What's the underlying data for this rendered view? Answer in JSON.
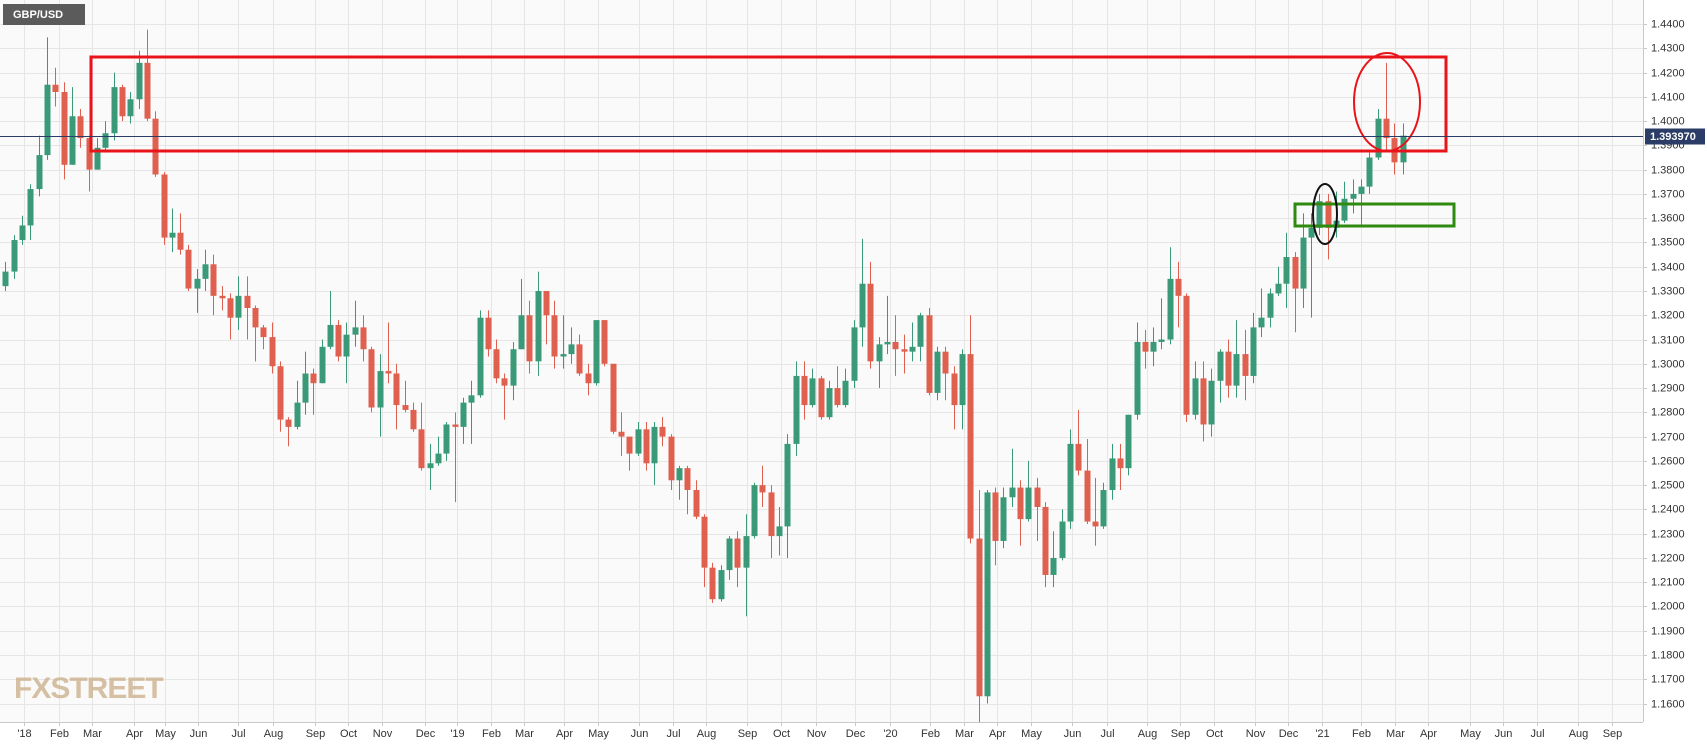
{
  "chart_data": {
    "type": "candlestick",
    "title": "GBP/USD",
    "watermark": "FXSTREET",
    "up_color": "#3a9a78",
    "down_color": "#e0604f",
    "grid": true,
    "open": [
      1.332,
      1.338,
      1.351,
      1.357,
      1.372,
      1.386,
      1.415,
      1.412,
      1.382,
      1.402,
      1.393,
      1.38,
      1.389,
      1.395,
      1.414,
      1.402,
      1.409,
      1.424,
      1.401,
      1.378,
      1.352,
      1.354,
      1.347,
      1.331,
      1.335,
      1.341,
      1.328,
      1.327,
      1.319,
      1.328,
      1.323,
      1.315,
      1.311,
      1.299,
      1.277,
      1.274,
      1.284,
      1.296,
      1.292,
      1.307,
      1.316,
      1.303,
      1.312,
      1.315,
      1.306,
      1.282,
      1.297,
      1.296,
      1.283,
      1.281,
      1.273,
      1.257,
      1.259,
      1.263,
      1.275,
      1.274,
      1.284,
      1.287,
      1.319,
      1.306,
      1.294,
      1.291,
      1.306,
      1.32,
      1.301,
      1.33,
      1.32,
      1.303,
      1.304,
      1.308,
      1.296,
      1.292,
      1.318,
      1.3,
      1.272,
      1.27,
      1.263,
      1.273,
      1.259,
      1.274,
      1.27,
      1.252,
      1.257,
      1.248,
      1.237,
      1.216,
      1.203,
      1.215,
      1.228,
      1.216,
      1.229,
      1.25,
      1.247,
      1.229,
      1.233,
      1.267,
      1.295,
      1.283,
      1.294,
      1.278,
      1.29,
      1.283,
      1.293,
      1.315,
      1.333,
      1.301,
      1.308,
      1.309,
      1.306,
      1.305,
      1.307,
      1.32,
      1.288,
      1.305,
      1.296,
      1.283,
      1.304,
      1.228,
      1.163,
      1.247,
      1.227,
      1.245,
      1.249,
      1.236,
      1.249,
      1.241,
      1.213,
      1.22,
      1.235,
      1.267,
      1.256,
      1.235,
      1.233,
      1.248,
      1.261,
      1.257,
      1.279,
      1.309,
      1.305,
      1.309,
      1.31,
      1.335,
      1.328,
      1.279,
      1.294,
      1.275,
      1.293,
      1.305,
      1.291,
      1.304,
      1.295,
      1.315,
      1.319,
      1.329,
      1.333,
      1.344,
      1.331,
      1.352,
      1.356,
      1.367,
      1.356,
      1.359,
      1.368,
      1.37,
      1.373,
      1.385,
      1.401,
      1.393,
      1.383
    ],
    "high": [
      1.342,
      1.353,
      1.361,
      1.374,
      1.394,
      1.4345,
      1.422,
      1.416,
      1.414,
      1.405,
      1.394,
      1.393,
      1.4,
      1.42,
      1.415,
      1.412,
      1.429,
      1.4377,
      1.404,
      1.379,
      1.364,
      1.362,
      1.349,
      1.339,
      1.347,
      1.345,
      1.332,
      1.329,
      1.336,
      1.336,
      1.324,
      1.316,
      1.317,
      1.301,
      1.278,
      1.293,
      1.305,
      1.298,
      1.31,
      1.33,
      1.318,
      1.317,
      1.326,
      1.32,
      1.307,
      1.304,
      1.317,
      1.3,
      1.293,
      1.284,
      1.284,
      1.267,
      1.27,
      1.276,
      1.28,
      1.286,
      1.293,
      1.322,
      1.322,
      1.31,
      1.296,
      1.309,
      1.335,
      1.326,
      1.338,
      1.33,
      1.326,
      1.32,
      1.315,
      1.312,
      1.3,
      1.318,
      1.318,
      1.3,
      1.28,
      1.27,
      1.276,
      1.276,
      1.276,
      1.278,
      1.271,
      1.258,
      1.258,
      1.252,
      1.238,
      1.218,
      1.217,
      1.229,
      1.231,
      1.238,
      1.251,
      1.258,
      1.25,
      1.241,
      1.271,
      1.301,
      1.301,
      1.298,
      1.295,
      1.293,
      1.299,
      1.298,
      1.318,
      1.3515,
      1.342,
      1.311,
      1.328,
      1.32,
      1.312,
      1.317,
      1.321,
      1.323,
      1.307,
      1.307,
      1.299,
      1.306,
      1.32,
      1.248,
      1.248,
      1.249,
      1.249,
      1.265,
      1.252,
      1.26,
      1.253,
      1.243,
      1.231,
      1.24,
      1.273,
      1.281,
      1.269,
      1.253,
      1.251,
      1.267,
      1.267,
      1.279,
      1.317,
      1.314,
      1.315,
      1.327,
      1.348,
      1.342,
      1.329,
      1.301,
      1.301,
      1.298,
      1.306,
      1.31,
      1.318,
      1.314,
      1.321,
      1.331,
      1.331,
      1.34,
      1.354,
      1.346,
      1.362,
      1.362,
      1.37,
      1.37,
      1.371,
      1.375,
      1.376,
      1.376,
      1.387,
      1.405,
      1.424,
      1.399,
      1.399
    ],
    "low": [
      1.33,
      1.335,
      1.349,
      1.351,
      1.369,
      1.384,
      1.406,
      1.376,
      1.382,
      1.389,
      1.371,
      1.38,
      1.387,
      1.392,
      1.4,
      1.399,
      1.405,
      1.4,
      1.377,
      1.349,
      1.346,
      1.345,
      1.33,
      1.321,
      1.33,
      1.32,
      1.322,
      1.31,
      1.314,
      1.31,
      1.301,
      1.306,
      1.296,
      1.272,
      1.266,
      1.273,
      1.279,
      1.279,
      1.292,
      1.306,
      1.301,
      1.292,
      1.307,
      1.301,
      1.28,
      1.27,
      1.292,
      1.273,
      1.28,
      1.272,
      1.256,
      1.248,
      1.258,
      1.26,
      1.243,
      1.267,
      1.267,
      1.286,
      1.303,
      1.292,
      1.277,
      1.285,
      1.306,
      1.296,
      1.295,
      1.308,
      1.298,
      1.298,
      1.3,
      1.295,
      1.287,
      1.291,
      1.299,
      1.271,
      1.262,
      1.256,
      1.262,
      1.256,
      1.25,
      1.266,
      1.248,
      1.244,
      1.238,
      1.236,
      1.208,
      1.2015,
      1.202,
      1.211,
      1.208,
      1.196,
      1.228,
      1.241,
      1.22,
      1.221,
      1.22,
      1.262,
      1.277,
      1.282,
      1.277,
      1.277,
      1.282,
      1.282,
      1.29,
      1.307,
      1.298,
      1.29,
      1.304,
      1.295,
      1.296,
      1.301,
      1.301,
      1.287,
      1.285,
      1.285,
      1.273,
      1.273,
      1.226,
      1.141,
      1.16,
      1.217,
      1.224,
      1.241,
      1.225,
      1.235,
      1.227,
      1.208,
      1.208,
      1.219,
      1.232,
      1.254,
      1.234,
      1.225,
      1.232,
      1.244,
      1.248,
      1.254,
      1.277,
      1.298,
      1.299,
      1.306,
      1.308,
      1.315,
      1.276,
      1.277,
      1.268,
      1.27,
      1.284,
      1.286,
      1.286,
      1.285,
      1.292,
      1.311,
      1.315,
      1.328,
      1.323,
      1.313,
      1.323,
      1.319,
      1.353,
      1.343,
      1.352,
      1.358,
      1.362,
      1.357,
      1.37,
      1.384,
      1.388,
      1.378,
      1.378
    ],
    "close": [
      1.338,
      1.351,
      1.357,
      1.372,
      1.386,
      1.415,
      1.412,
      1.382,
      1.402,
      1.393,
      1.38,
      1.389,
      1.395,
      1.414,
      1.402,
      1.409,
      1.424,
      1.401,
      1.378,
      1.352,
      1.354,
      1.347,
      1.331,
      1.335,
      1.341,
      1.328,
      1.327,
      1.319,
      1.328,
      1.323,
      1.315,
      1.311,
      1.299,
      1.277,
      1.274,
      1.284,
      1.296,
      1.292,
      1.307,
      1.316,
      1.303,
      1.312,
      1.315,
      1.306,
      1.282,
      1.297,
      1.296,
      1.283,
      1.281,
      1.273,
      1.257,
      1.259,
      1.263,
      1.275,
      1.274,
      1.284,
      1.287,
      1.319,
      1.306,
      1.294,
      1.291,
      1.306,
      1.32,
      1.301,
      1.33,
      1.32,
      1.303,
      1.304,
      1.308,
      1.296,
      1.292,
      1.318,
      1.3,
      1.272,
      1.27,
      1.263,
      1.273,
      1.259,
      1.274,
      1.27,
      1.252,
      1.257,
      1.248,
      1.237,
      1.216,
      1.203,
      1.215,
      1.228,
      1.216,
      1.229,
      1.25,
      1.247,
      1.229,
      1.233,
      1.267,
      1.295,
      1.283,
      1.294,
      1.278,
      1.29,
      1.283,
      1.293,
      1.315,
      1.333,
      1.301,
      1.308,
      1.309,
      1.306,
      1.305,
      1.307,
      1.32,
      1.288,
      1.305,
      1.296,
      1.283,
      1.304,
      1.228,
      1.163,
      1.247,
      1.227,
      1.245,
      1.249,
      1.236,
      1.249,
      1.241,
      1.213,
      1.22,
      1.235,
      1.267,
      1.256,
      1.235,
      1.233,
      1.248,
      1.261,
      1.257,
      1.279,
      1.309,
      1.305,
      1.309,
      1.31,
      1.335,
      1.328,
      1.279,
      1.294,
      1.275,
      1.293,
      1.305,
      1.291,
      1.304,
      1.295,
      1.315,
      1.319,
      1.329,
      1.333,
      1.344,
      1.331,
      1.352,
      1.356,
      1.367,
      1.356,
      1.359,
      1.368,
      1.37,
      1.373,
      1.385,
      1.401,
      1.393,
      1.383,
      1.394
    ],
    "current_price": {
      "value": 1.39397,
      "label": "1.393970"
    },
    "xlim": [
      -0.66,
      196.9
    ],
    "xticks": [
      {
        "value": 2.2,
        "label": "'18"
      },
      {
        "value": 6.4,
        "label": "Feb"
      },
      {
        "value": 10.4,
        "label": "Mar"
      },
      {
        "value": 15.4,
        "label": "Apr"
      },
      {
        "value": 19.2,
        "label": "May"
      },
      {
        "value": 23.2,
        "label": "Jun"
      },
      {
        "value": 28.0,
        "label": "Jul"
      },
      {
        "value": 32.2,
        "label": "Aug"
      },
      {
        "value": 37.2,
        "label": "Sep"
      },
      {
        "value": 41.2,
        "label": "Oct"
      },
      {
        "value": 45.3,
        "label": "Nov"
      },
      {
        "value": 50.4,
        "label": "Dec"
      },
      {
        "value": 54.3,
        "label": "'19"
      },
      {
        "value": 58.4,
        "label": "Feb"
      },
      {
        "value": 62.4,
        "label": "Mar"
      },
      {
        "value": 67.2,
        "label": "Apr"
      },
      {
        "value": 71.2,
        "label": "May"
      },
      {
        "value": 76.2,
        "label": "Jun"
      },
      {
        "value": 80.3,
        "label": "Jul"
      },
      {
        "value": 84.2,
        "label": "Aug"
      },
      {
        "value": 89.2,
        "label": "Sep"
      },
      {
        "value": 93.3,
        "label": "Oct"
      },
      {
        "value": 97.4,
        "label": "Nov"
      },
      {
        "value": 102.2,
        "label": "Dec"
      },
      {
        "value": 106.3,
        "label": "'20"
      },
      {
        "value": 111.2,
        "label": "Feb"
      },
      {
        "value": 115.3,
        "label": "Mar"
      },
      {
        "value": 119.2,
        "label": "Apr"
      },
      {
        "value": 123.3,
        "label": "May"
      },
      {
        "value": 128.3,
        "label": "Jun"
      },
      {
        "value": 132.4,
        "label": "Jul"
      },
      {
        "value": 137.2,
        "label": "Aug"
      },
      {
        "value": 141.2,
        "label": "Sep"
      },
      {
        "value": 145.3,
        "label": "Oct"
      },
      {
        "value": 150.3,
        "label": "Nov"
      },
      {
        "value": 154.2,
        "label": "Dec"
      },
      {
        "value": 158.3,
        "label": "'21"
      },
      {
        "value": 163.0,
        "label": "Feb"
      },
      {
        "value": 167.1,
        "label": "Mar"
      },
      {
        "value": 171.1,
        "label": "Apr"
      },
      {
        "value": 176.1,
        "label": "May"
      },
      {
        "value": 180.1,
        "label": "Jun"
      },
      {
        "value": 184.1,
        "label": "Jul"
      },
      {
        "value": 189.1,
        "label": "Aug"
      },
      {
        "value": 193.2,
        "label": "Sep"
      }
    ],
    "ylim": [
      1.1524,
      1.4499
    ],
    "yticks": [
      {
        "value": 1.16,
        "label": "1.1600"
      },
      {
        "value": 1.17,
        "label": "1.1700"
      },
      {
        "value": 1.18,
        "label": "1.1800"
      },
      {
        "value": 1.19,
        "label": "1.1900"
      },
      {
        "value": 1.2,
        "label": "1.2000"
      },
      {
        "value": 1.21,
        "label": "1.2100"
      },
      {
        "value": 1.22,
        "label": "1.2200"
      },
      {
        "value": 1.23,
        "label": "1.2300"
      },
      {
        "value": 1.24,
        "label": "1.2400"
      },
      {
        "value": 1.25,
        "label": "1.2500"
      },
      {
        "value": 1.26,
        "label": "1.2600"
      },
      {
        "value": 1.27,
        "label": "1.2700"
      },
      {
        "value": 1.28,
        "label": "1.2800"
      },
      {
        "value": 1.29,
        "label": "1.2900"
      },
      {
        "value": 1.3,
        "label": "1.3000"
      },
      {
        "value": 1.31,
        "label": "1.3100"
      },
      {
        "value": 1.32,
        "label": "1.3200"
      },
      {
        "value": 1.33,
        "label": "1.3300"
      },
      {
        "value": 1.34,
        "label": "1.3400"
      },
      {
        "value": 1.35,
        "label": "1.3500"
      },
      {
        "value": 1.36,
        "label": "1.3600"
      },
      {
        "value": 1.37,
        "label": "1.3700"
      },
      {
        "value": 1.38,
        "label": "1.3800"
      },
      {
        "value": 1.39,
        "label": "1.3900"
      },
      {
        "value": 1.4,
        "label": "1.4000"
      },
      {
        "value": 1.41,
        "label": "1.4100"
      },
      {
        "value": 1.42,
        "label": "1.4200"
      },
      {
        "value": 1.43,
        "label": "1.4300"
      },
      {
        "value": 1.44,
        "label": "1.4400"
      }
    ]
  }
}
